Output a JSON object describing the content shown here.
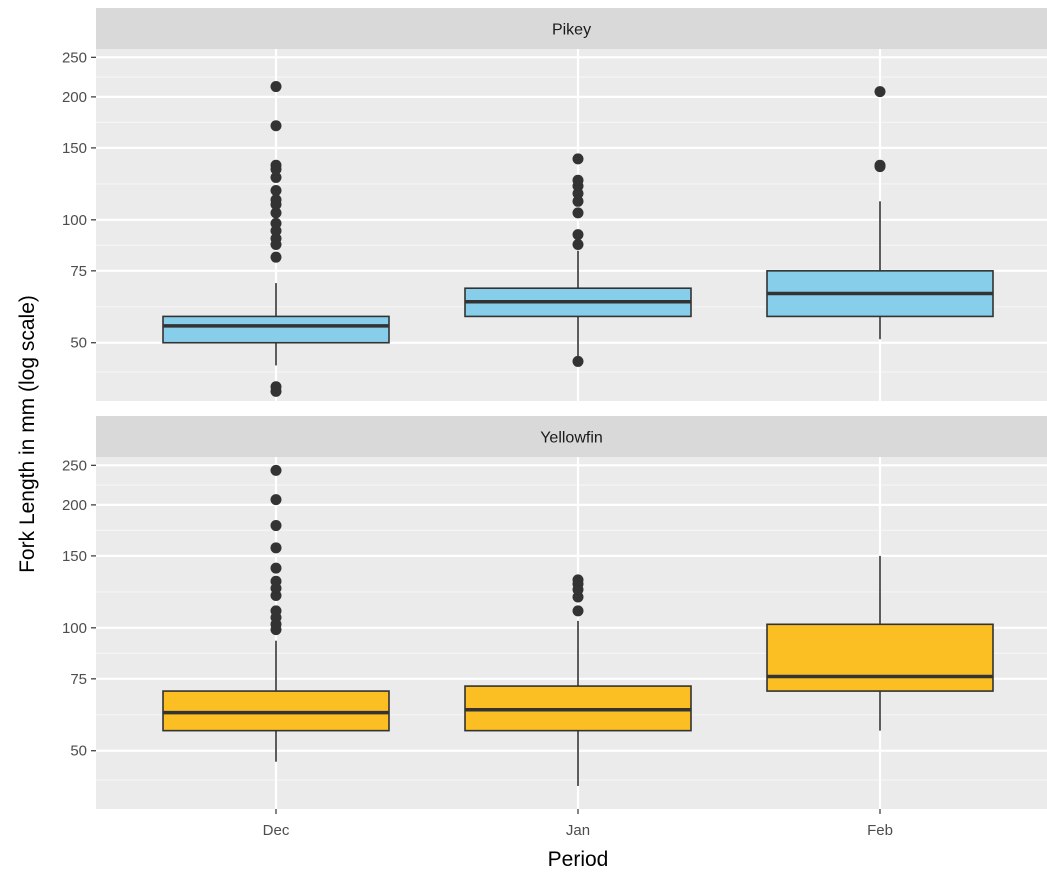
{
  "chart_data": {
    "type": "boxplot",
    "xlabel": "Period",
    "ylabel": "Fork Length in mm (log scale)",
    "y_scale": "log",
    "ylim": [
      36,
      262
    ],
    "y_ticks": [
      50,
      75,
      100,
      150,
      200,
      250
    ],
    "categories": [
      "Dec",
      "Jan",
      "Feb"
    ],
    "grid": true,
    "panels": [
      {
        "name": "Pikey",
        "fill": "#87ceeb",
        "boxes": [
          {
            "x": "Dec",
            "whisker_low": 44,
            "q1": 50,
            "median": 55,
            "q3": 58,
            "whisker_high": 70,
            "outliers": [
              38,
              39,
              81,
              87,
              90,
              94,
              98,
              104,
              109,
              112,
              118,
              127,
              133,
              136,
              170,
              212
            ]
          },
          {
            "x": "Jan",
            "whisker_low": 45,
            "q1": 58,
            "median": 63,
            "q3": 68,
            "whisker_high": 84,
            "outliers": [
              45,
              87,
              92,
              104,
              111,
              116,
              121,
              125,
              141
            ]
          },
          {
            "x": "Feb",
            "whisker_low": 51,
            "q1": 58,
            "median": 66,
            "q3": 75,
            "whisker_high": 111,
            "outliers": [
              135,
              136,
              206
            ]
          }
        ]
      },
      {
        "name": "Yellowfin",
        "fill": "#fbbf24",
        "boxes": [
          {
            "x": "Dec",
            "whisker_low": 47,
            "q1": 56,
            "median": 62,
            "q3": 70,
            "whisker_high": 93,
            "outliers": [
              99,
              102,
              106,
              110,
              120,
              125,
              130,
              140,
              157,
              178,
              206,
              243
            ]
          },
          {
            "x": "Jan",
            "whisker_low": 41,
            "q1": 56,
            "median": 63,
            "q3": 72,
            "whisker_high": 104,
            "outliers": [
              110,
              119,
              124,
              128,
              131
            ]
          },
          {
            "x": "Feb",
            "whisker_low": 56,
            "q1": 70,
            "median": 76,
            "q3": 102,
            "whisker_high": 150,
            "outliers": []
          }
        ]
      }
    ]
  }
}
